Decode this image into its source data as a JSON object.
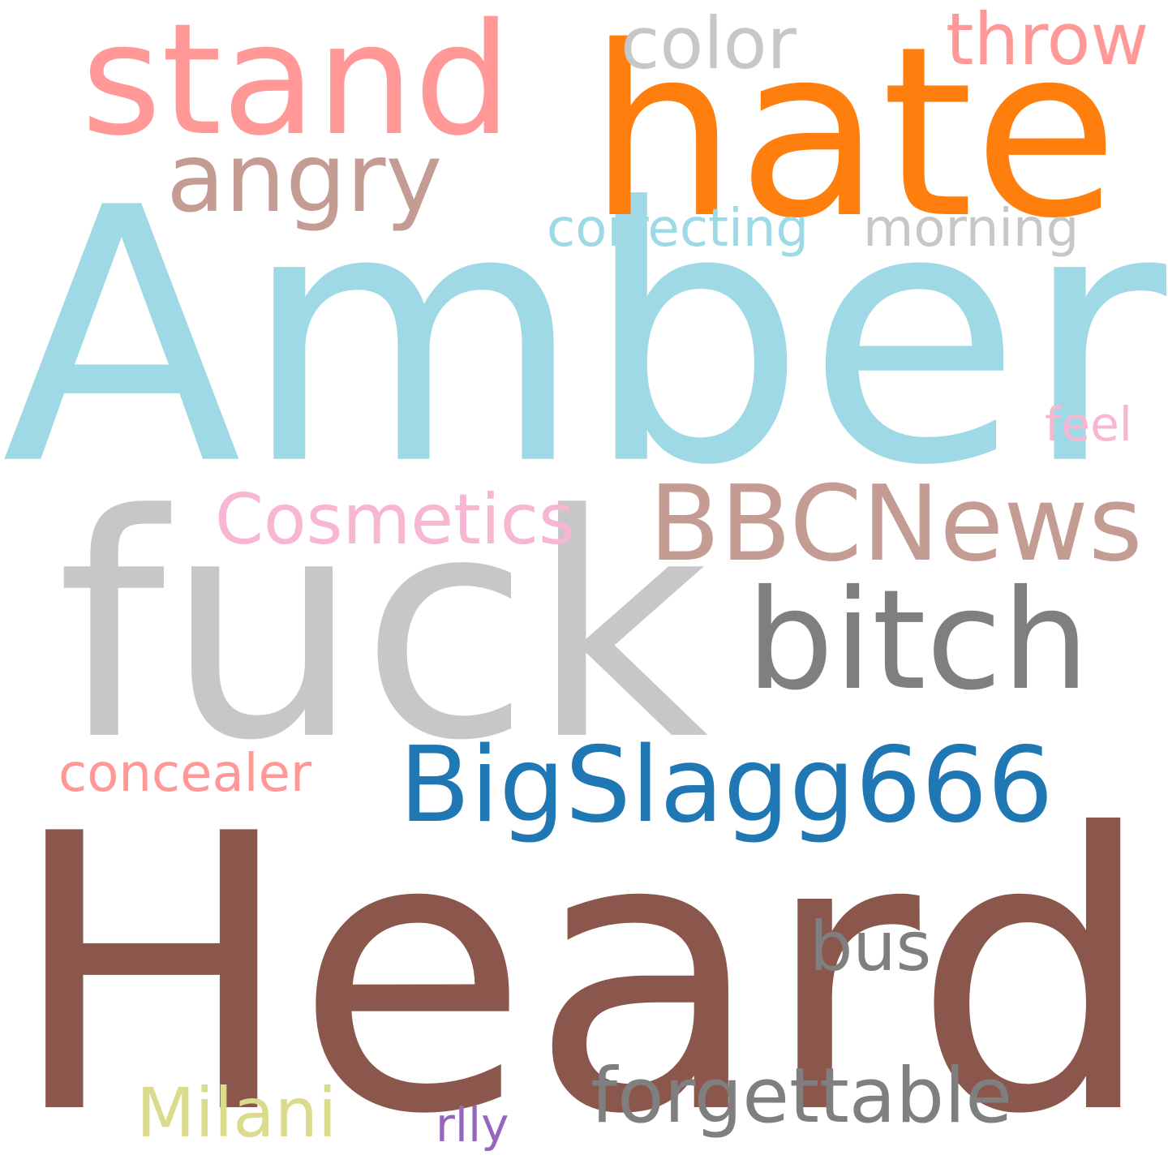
{
  "word_cloud": {
    "background_color": "#ffffff",
    "words": [
      {
        "id": "heard",
        "text": "Heard",
        "color": "#8b564b"
      },
      {
        "id": "amber",
        "text": "Amber",
        "color": "#9fd9e5"
      },
      {
        "id": "fuck",
        "text": "fuck",
        "color": "#c7c7c7"
      },
      {
        "id": "hate",
        "text": "hate",
        "color": "#ff7f0e"
      },
      {
        "id": "stand",
        "text": "stand",
        "color": "#ff9896"
      },
      {
        "id": "bitch",
        "text": "bitch",
        "color": "#7f7f7f"
      },
      {
        "id": "bbcnews",
        "text": "BBCNews",
        "color": "#c49c94"
      },
      {
        "id": "bigslagg",
        "text": "BigSlagg666",
        "color": "#1f77b4"
      },
      {
        "id": "angry",
        "text": "angry",
        "color": "#c49c94"
      },
      {
        "id": "color",
        "text": "color",
        "color": "#c7c7c7"
      },
      {
        "id": "throw",
        "text": "throw",
        "color": "#ff9896"
      },
      {
        "id": "cosmetics",
        "text": "Cosmetics",
        "color": "#f7b6d2"
      },
      {
        "id": "forgettable",
        "text": "forgettable",
        "color": "#7f7f7f"
      },
      {
        "id": "milani",
        "text": "Milani",
        "color": "#dbdb8d"
      },
      {
        "id": "bus",
        "text": "bus",
        "color": "#7f7f7f"
      },
      {
        "id": "correcting",
        "text": "correcting",
        "color": "#9edae5"
      },
      {
        "id": "morning",
        "text": "morning",
        "color": "#c7c7c7"
      },
      {
        "id": "concealer",
        "text": "concealer",
        "color": "#ff9896"
      },
      {
        "id": "feel",
        "text": "feel",
        "color": "#f7b6d2"
      },
      {
        "id": "rlly",
        "text": "rlly",
        "color": "#9467bd"
      }
    ]
  }
}
